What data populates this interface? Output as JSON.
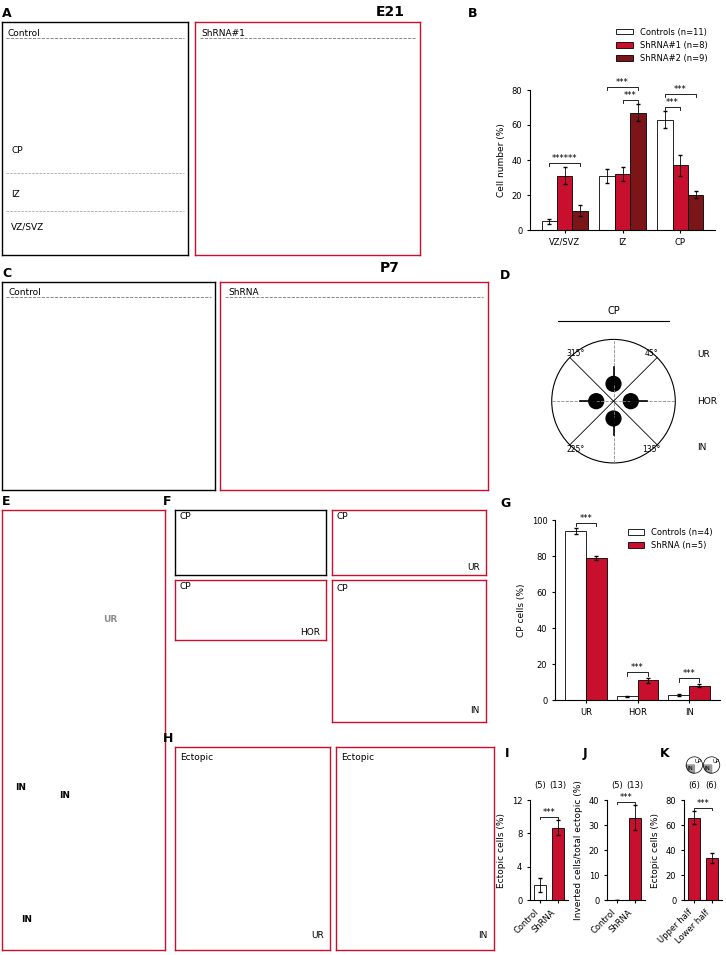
{
  "headings": [
    "E21",
    "P7"
  ],
  "images": {
    "A": [
      {
        "title": "Control",
        "color": "#000000",
        "layers": [
          "CP",
          "IZ",
          "VZ/SVZ"
        ]
      },
      {
        "title": "ShRNA#1",
        "color": "#c8102e"
      }
    ],
    "C": [
      {
        "title": "Control",
        "color": "#000000"
      },
      {
        "title": "ShRNA",
        "color": "#c8102e"
      }
    ],
    "E": [
      {
        "color": "#c8102e",
        "cells": [
          {
            "text": "UR",
            "color": "#8c8c8c"
          },
          {
            "text": "IN",
            "color": "#000000"
          },
          {
            "text": "IN",
            "color": "#000000"
          },
          {
            "text": "IN",
            "color": "#000000"
          }
        ]
      }
    ],
    "F": [
      {
        "title": "CP",
        "color": "#000000"
      },
      {
        "title": "CP",
        "label": "UR",
        "color": "#c8102e"
      },
      {
        "title": "CP",
        "label": "HOR",
        "color": "#c8102e"
      },
      {
        "title": "CP",
        "label": "IN",
        "color": "#c8102e"
      }
    ],
    "H": [
      {
        "title": "Ectopic",
        "label": "UR",
        "color": "#c8102e"
      },
      {
        "title": "Ectopic",
        "label": "IN",
        "color": "#c8102e"
      }
    ]
  },
  "diagram": {
    "letter": "D",
    "top": "CP",
    "side_labels": [
      "UR",
      "HOR",
      "IN"
    ],
    "angles": [
      "315°",
      "45°",
      "225°",
      "135°"
    ]
  },
  "chart_data": [
    {
      "letter": "B",
      "type": "bar",
      "ylabel": "Cell number (%)",
      "categories": [
        "VZ/SVZ",
        "IZ",
        "CP"
      ],
      "series": [
        {
          "name": "Controls (n=11)",
          "color": "#ffffff",
          "values": [
            5,
            31,
            63
          ],
          "errors": [
            1.5,
            4,
            5
          ]
        },
        {
          "name": "ShRNA#1 (n=8)",
          "color": "#c8102e",
          "values": [
            31,
            32,
            37
          ],
          "errors": [
            5,
            4,
            6
          ]
        },
        {
          "name": "ShRNA#2 (n=9)",
          "color": "#7b1518",
          "values": [
            11,
            67,
            20
          ],
          "errors": [
            3,
            5,
            2
          ]
        }
      ],
      "ylim": [
        0,
        80
      ],
      "yticks": [
        0,
        20,
        40,
        60,
        80
      ],
      "legend": "upper right",
      "grid": false,
      "significance": [
        {
          "text": "******",
          "category": "VZ/SVZ",
          "pair": [
            "Controls (n=11)",
            "ShRNA#2 (n=9)"
          ]
        },
        {
          "text": "***",
          "category": "IZ",
          "pair": [
            "ShRNA#1 (n=8)",
            "ShRNA#2 (n=9)"
          ]
        },
        {
          "text": "***",
          "category": "IZ",
          "pair": [
            "Controls (n=11)",
            "ShRNA#2 (n=9)"
          ]
        },
        {
          "text": "***",
          "category": "CP",
          "pair": [
            "Controls (n=11)",
            "ShRNA#1 (n=8)"
          ]
        },
        {
          "text": "***",
          "category": "CP",
          "pair": [
            "Controls (n=11)",
            "ShRNA#2 (n=9)"
          ]
        }
      ]
    },
    {
      "letter": "G",
      "type": "bar",
      "ylabel": "CP cells (%)",
      "categories": [
        "UR",
        "HOR",
        "IN"
      ],
      "series": [
        {
          "name": "Controls (n=4)",
          "color": "#ffffff",
          "values": [
            94,
            2,
            3
          ],
          "errors": [
            1.5,
            0.5,
            0.5
          ]
        },
        {
          "name": "ShRNA (n=5)",
          "color": "#c8102e",
          "values": [
            79,
            11,
            8
          ],
          "errors": [
            1,
            1.5,
            1
          ]
        }
      ],
      "ylim": [
        0,
        100
      ],
      "yticks": [
        0,
        20,
        40,
        60,
        80,
        100
      ],
      "legend": "upper right",
      "grid": false,
      "significance": [
        {
          "text": "***",
          "category": "UR",
          "pair": [
            "Controls (n=4)",
            "ShRNA (n=5)"
          ]
        },
        {
          "text": "***",
          "category": "HOR",
          "pair": [
            "Controls (n=4)",
            "ShRNA (n=5)"
          ]
        },
        {
          "text": "***",
          "category": "IN",
          "pair": [
            "Controls (n=4)",
            "ShRNA (n=5)"
          ]
        }
      ]
    },
    {
      "letter": "I",
      "type": "bar",
      "ylabel": "Ectopic cells (%)",
      "categories": [
        "Control",
        "ShRNA"
      ],
      "values": [
        1.8,
        8.7
      ],
      "errors": [
        0.8,
        0.9
      ],
      "colors": [
        "#ffffff",
        "#c8102e"
      ],
      "n_labels": [
        "(5)",
        "(13)"
      ],
      "ylim": [
        0,
        12
      ],
      "yticks": [
        0,
        4,
        8,
        12
      ],
      "grid": false,
      "significance": [
        {
          "text": "***",
          "pair": [
            "Control",
            "ShRNA"
          ]
        }
      ]
    },
    {
      "letter": "J",
      "type": "bar",
      "ylabel": "Inverted cells/total ectopic (%)",
      "categories": [
        "Control",
        "ShRNA"
      ],
      "values": [
        0,
        33
      ],
      "errors": [
        0,
        5
      ],
      "colors": [
        "#ffffff",
        "#c8102e"
      ],
      "n_labels": [
        "(5)",
        "(13)"
      ],
      "ylim": [
        0,
        40
      ],
      "yticks": [
        0,
        10,
        20,
        30,
        40
      ],
      "grid": false,
      "significance": [
        {
          "text": "***",
          "pair": [
            "Control",
            "ShRNA"
          ]
        }
      ]
    },
    {
      "letter": "K",
      "type": "bar",
      "ylabel": "Ectopic cells (%)",
      "categories": [
        "Upper half",
        "Lower half"
      ],
      "values": [
        66,
        34
      ],
      "errors": [
        5,
        4
      ],
      "colors": [
        "#c8102e",
        "#c8102e"
      ],
      "n_labels": [
        "(6)",
        "(6)"
      ],
      "ylim": [
        0,
        80
      ],
      "yticks": [
        0,
        20,
        40,
        60,
        80
      ],
      "grid": false,
      "icons": [
        [
          "IN",
          "UP"
        ],
        [
          "IN",
          "UP"
        ]
      ],
      "significance": [
        {
          "text": "***",
          "pair": [
            "Upper half",
            "Lower half"
          ]
        }
      ]
    }
  ]
}
